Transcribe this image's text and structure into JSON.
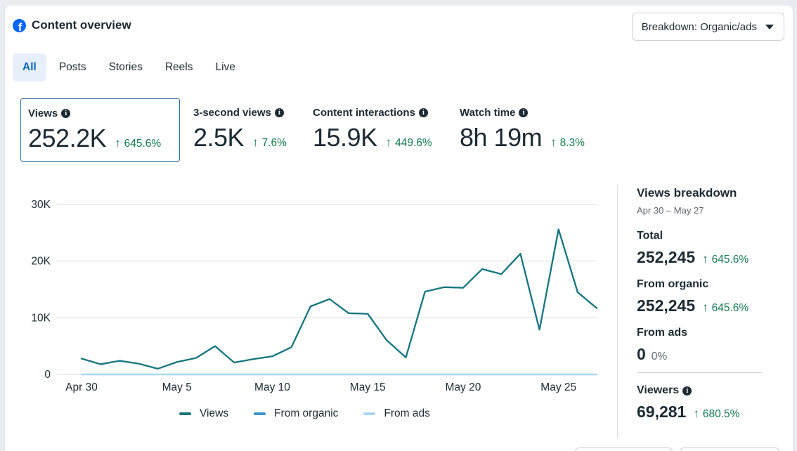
{
  "header": {
    "title": "Content overview",
    "icon": "facebook-icon"
  },
  "dropdown": {
    "label": "Breakdown: Organic/ads"
  },
  "tabs": [
    {
      "label": "All",
      "active": true
    },
    {
      "label": "Posts",
      "active": false
    },
    {
      "label": "Stories",
      "active": false
    },
    {
      "label": "Reels",
      "active": false
    },
    {
      "label": "Live",
      "active": false
    }
  ],
  "metrics": [
    {
      "label": "Views",
      "value": "252.2K",
      "change": "645.6%"
    },
    {
      "label": "3-second views",
      "value": "2.5K",
      "change": "7.6%"
    },
    {
      "label": "Content interactions",
      "value": "15.9K",
      "change": "449.6%"
    },
    {
      "label": "Watch time",
      "value": "8h 19m",
      "change": "8.3%"
    }
  ],
  "chart_data": {
    "type": "line",
    "title": "",
    "y_tick_labels": [
      "0",
      "10K",
      "20K",
      "30K"
    ],
    "ylim": [
      0,
      30000
    ],
    "x_tick_labels": [
      "Apr 30",
      "May 5",
      "May 10",
      "May 15",
      "May 20",
      "May 25"
    ],
    "x": [
      "Apr 30",
      "May 1",
      "May 2",
      "May 3",
      "May 4",
      "May 5",
      "May 6",
      "May 7",
      "May 8",
      "May 9",
      "May 10",
      "May 11",
      "May 12",
      "May 13",
      "May 14",
      "May 15",
      "May 16",
      "May 17",
      "May 18",
      "May 19",
      "May 20",
      "May 21",
      "May 22",
      "May 23",
      "May 24",
      "May 25",
      "May 26",
      "May 27"
    ],
    "series": [
      {
        "name": "Views",
        "color": "#18767d",
        "values": [
          2800,
          1800,
          2400,
          1900,
          1000,
          2200,
          2900,
          5000,
          2100,
          2700,
          3200,
          4800,
          12000,
          13300,
          10800,
          10700,
          6000,
          3000,
          14600,
          15400,
          15300,
          18600,
          17700,
          21300,
          7900,
          25600,
          14500,
          11700
        ]
      },
      {
        "name": "From organic",
        "color": "#3b95c9",
        "values": [
          2800,
          1800,
          2400,
          1900,
          1000,
          2200,
          2900,
          5000,
          2100,
          2700,
          3200,
          4800,
          12000,
          13300,
          10800,
          10700,
          6000,
          3000,
          14600,
          15400,
          15300,
          18600,
          17700,
          21300,
          7900,
          25600,
          14500,
          11700
        ]
      },
      {
        "name": "From ads",
        "color": "#a8d8f0",
        "values": [
          0,
          0,
          0,
          0,
          0,
          0,
          0,
          0,
          0,
          0,
          0,
          0,
          0,
          0,
          0,
          0,
          0,
          0,
          0,
          0,
          0,
          0,
          0,
          0,
          0,
          0,
          0,
          0
        ]
      }
    ],
    "grid": true,
    "legend_position": "bottom"
  },
  "breakdown": {
    "title": "Views breakdown",
    "date_range": "Apr 30 – May 27",
    "total": {
      "label": "Total",
      "value": "252,245",
      "change": "645.6%"
    },
    "organic": {
      "label": "From organic",
      "value": "252,245",
      "change": "645.6%"
    },
    "ads": {
      "label": "From ads",
      "value": "0",
      "change": "0%"
    },
    "viewers": {
      "label": "Viewers",
      "value": "69,281",
      "change": "680.5%"
    }
  },
  "colors": {
    "accent": "#0a66c2",
    "positive": "#137a4f",
    "series_views": "#18767d"
  }
}
